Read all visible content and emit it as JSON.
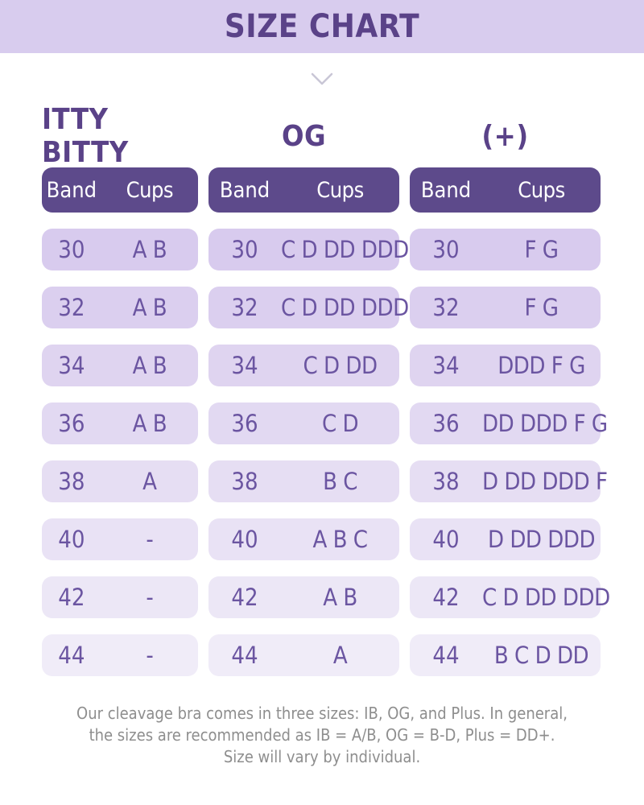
{
  "title": "SIZE CHART",
  "chevron_icon": "chevron-down",
  "columns": [
    {
      "name": "ITTY BITTY",
      "band_label": "Band",
      "cups_label": "Cups",
      "rows": [
        {
          "band": "30",
          "cups": "A B"
        },
        {
          "band": "32",
          "cups": "A B"
        },
        {
          "band": "34",
          "cups": "A B"
        },
        {
          "band": "36",
          "cups": "A B"
        },
        {
          "band": "38",
          "cups": "A"
        },
        {
          "band": "40",
          "cups": "-"
        },
        {
          "band": "42",
          "cups": "-"
        },
        {
          "band": "44",
          "cups": "-"
        }
      ]
    },
    {
      "name": "OG",
      "band_label": "Band",
      "cups_label": "Cups",
      "rows": [
        {
          "band": "30",
          "cups": "C D DD DDD"
        },
        {
          "band": "32",
          "cups": "C D DD DDD"
        },
        {
          "band": "34",
          "cups": "C D DD"
        },
        {
          "band": "36",
          "cups": "C D"
        },
        {
          "band": "38",
          "cups": "B C"
        },
        {
          "band": "40",
          "cups": "A B C"
        },
        {
          "band": "42",
          "cups": "A B"
        },
        {
          "band": "44",
          "cups": "A"
        }
      ]
    },
    {
      "name": "(+)",
      "band_label": "Band",
      "cups_label": "Cups",
      "rows": [
        {
          "band": "30",
          "cups": "F G"
        },
        {
          "band": "32",
          "cups": "F G"
        },
        {
          "band": "34",
          "cups": "DDD F G"
        },
        {
          "band": "36",
          "cups": "DD DDD F G"
        },
        {
          "band": "38",
          "cups": "D DD DDD F"
        },
        {
          "band": "40",
          "cups": "D DD DDD"
        },
        {
          "band": "42",
          "cups": "C D DD DDD"
        },
        {
          "band": "44",
          "cups": "B C D DD"
        }
      ]
    }
  ],
  "footer": {
    "lines": [
      "Our cleavage bra comes in three sizes: IB, OG, and Plus. In general,",
      "the sizes are recommended as IB = A/B, OG = B-D, Plus = DD+.",
      "Size will vary by individual."
    ]
  },
  "colors": {
    "banner_bg": "#d8ccee",
    "heading_purple": "#5a4288",
    "header_pill_bg": "#5d4a8b",
    "header_pill_text": "#ffffff",
    "row_text": "#6b55a1",
    "footer_text": "#8e8e8e",
    "chevron": "#c9c6d6",
    "page_bg": "#ffffff",
    "row_gradient": [
      "#d8cbee",
      "#dbcfef",
      "#dfd4f0",
      "#e2d9f2",
      "#e6def3",
      "#e9e2f5",
      "#ece7f6",
      "#f0ecf8"
    ]
  }
}
